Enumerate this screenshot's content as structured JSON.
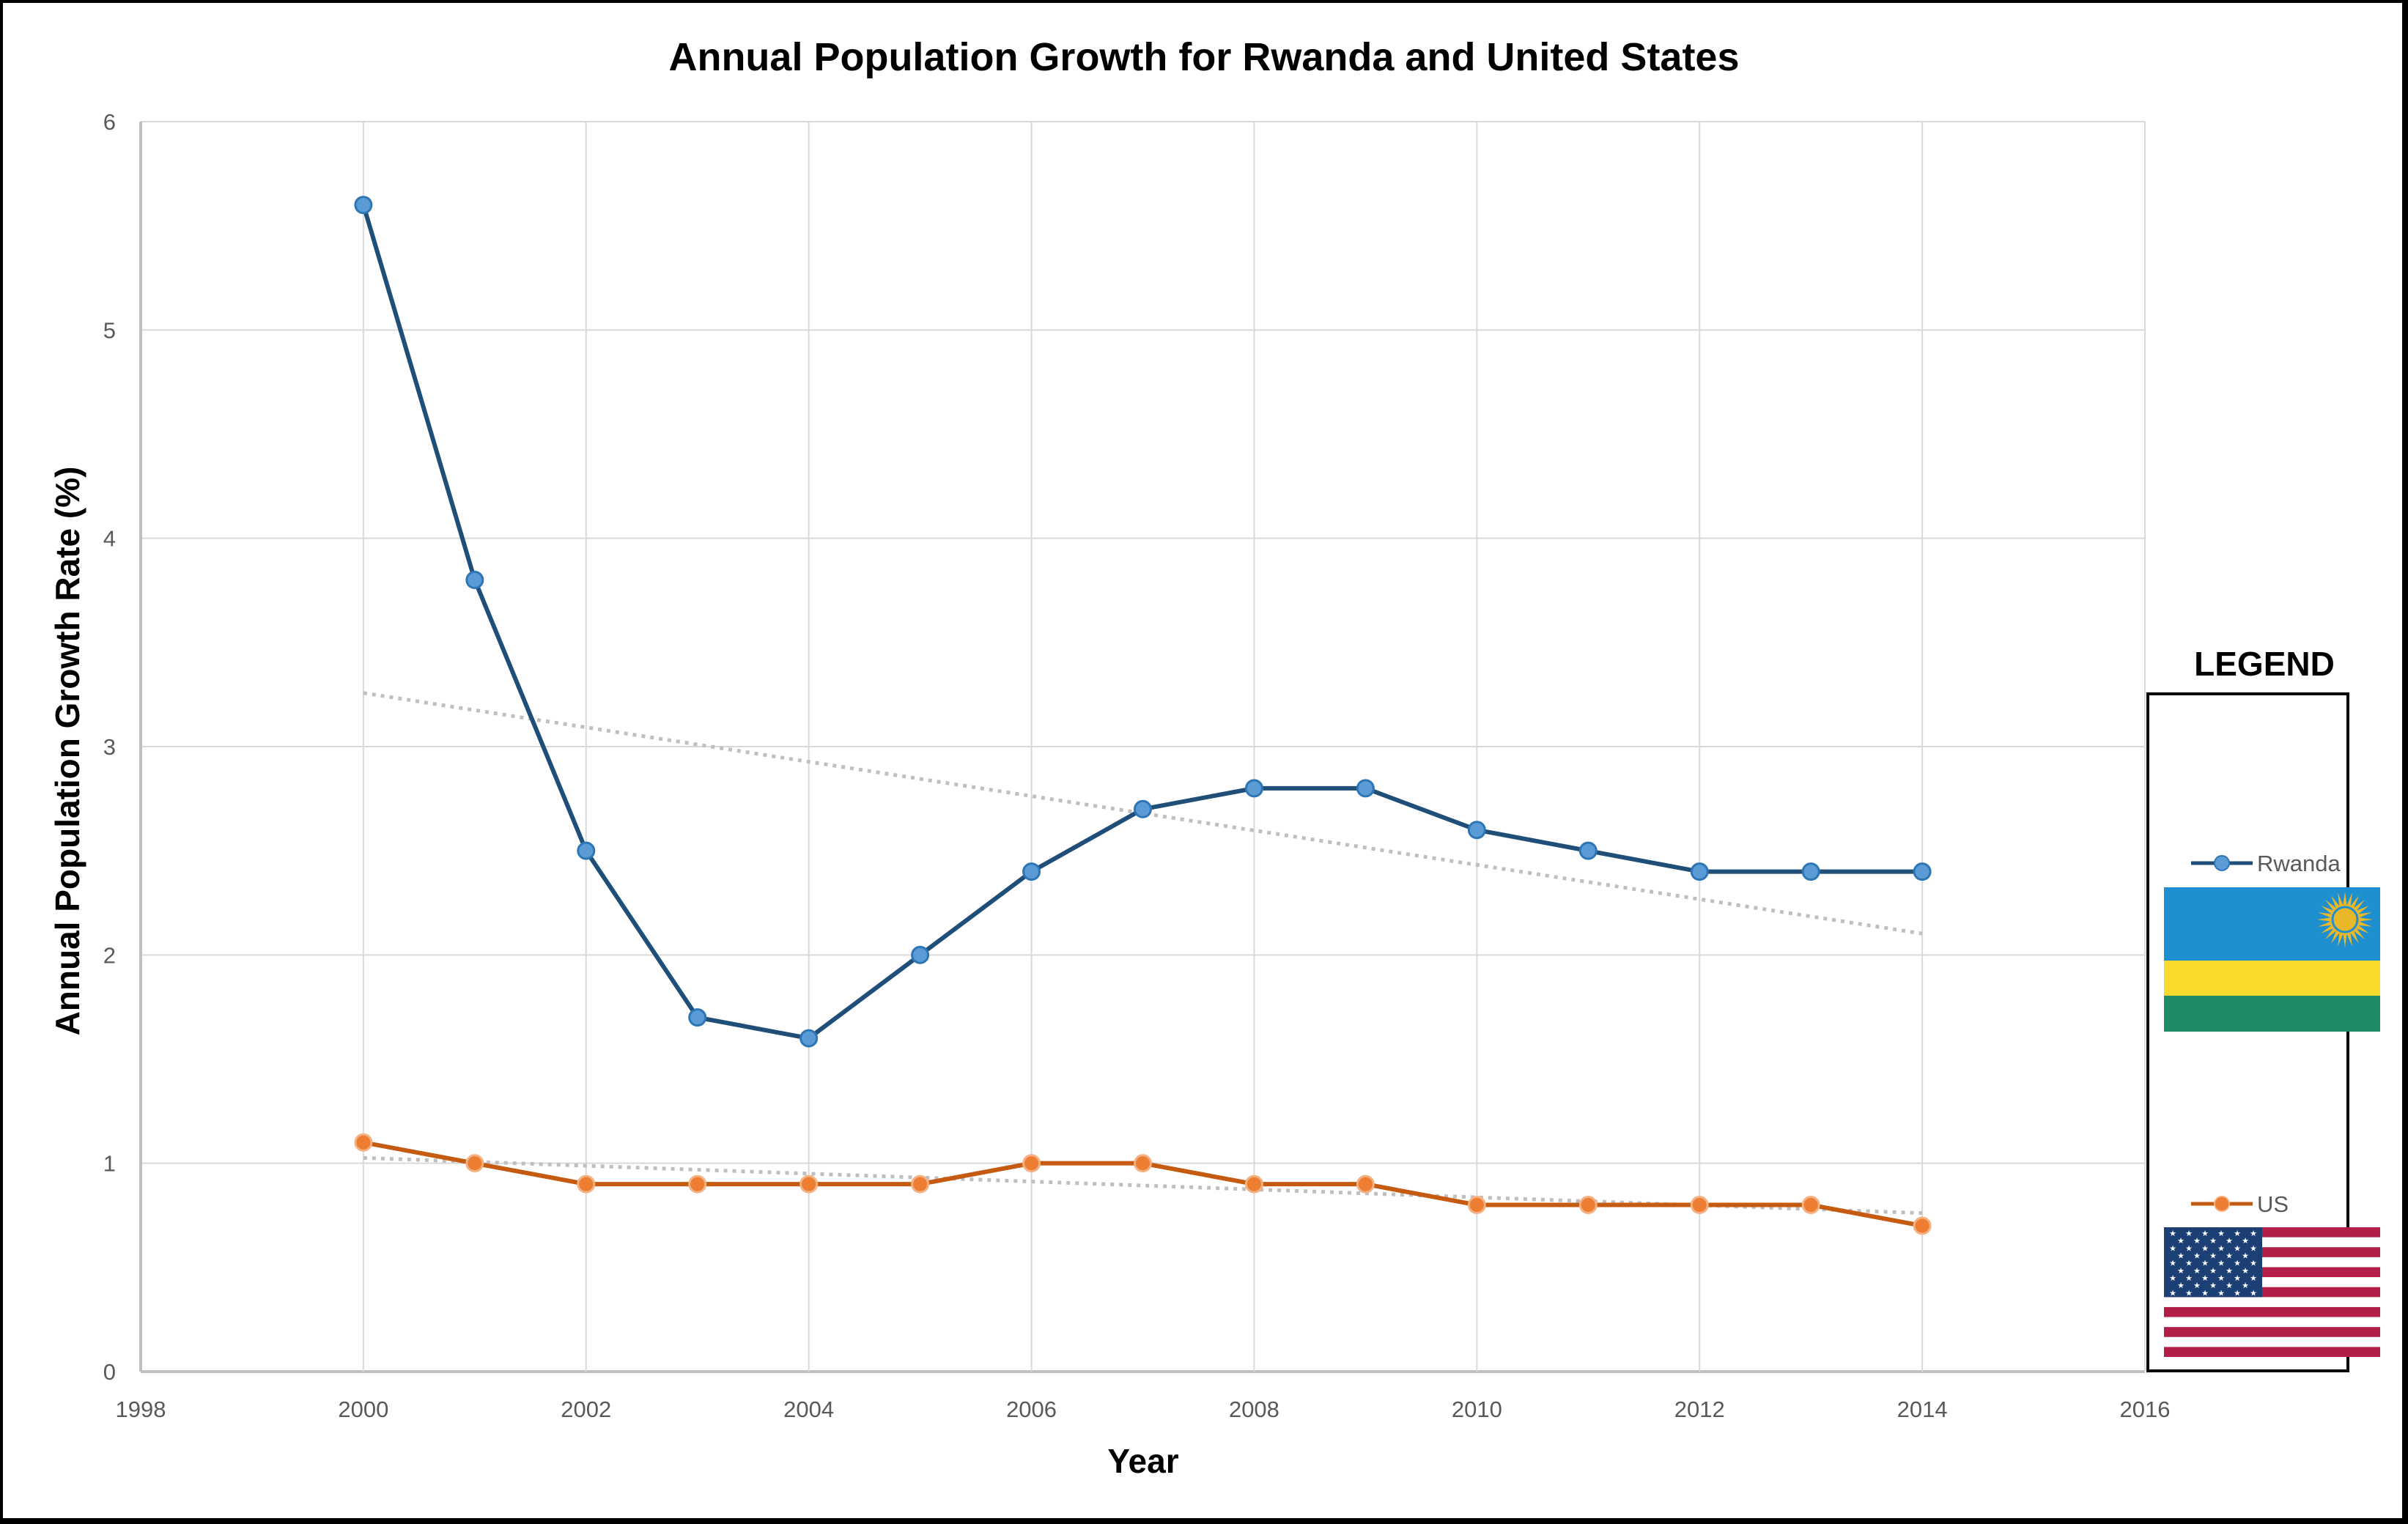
{
  "chart_data": {
    "type": "line",
    "title": "Annual Population Growth for Rwanda and United States",
    "xlabel": "Year",
    "ylabel": "Annual Population Growth Rate (%)",
    "xlim": [
      1998,
      2016
    ],
    "ylim": [
      0,
      6
    ],
    "x_ticks": [
      1998,
      2000,
      2002,
      2004,
      2006,
      2008,
      2010,
      2012,
      2014,
      2016
    ],
    "y_ticks": [
      0,
      1,
      2,
      3,
      4,
      5,
      6
    ],
    "grid": true,
    "x": [
      2000,
      2001,
      2002,
      2003,
      2004,
      2005,
      2006,
      2007,
      2008,
      2009,
      2010,
      2011,
      2012,
      2013,
      2014
    ],
    "series": [
      {
        "name": "Rwanda",
        "line_color": "#1F4E79",
        "marker_color": "#5B9BD5",
        "values": [
          5.6,
          3.8,
          2.5,
          1.7,
          1.6,
          2.0,
          2.4,
          2.7,
          2.8,
          2.8,
          2.6,
          2.5,
          2.4,
          2.4,
          2.4
        ],
        "trendline": "linear"
      },
      {
        "name": "US",
        "line_color": "#C55A11",
        "marker_color": "#ED7D31",
        "values": [
          1.1,
          1.0,
          0.9,
          0.9,
          0.9,
          0.9,
          1.0,
          1.0,
          0.9,
          0.9,
          0.8,
          0.8,
          0.8,
          0.8,
          0.7
        ],
        "trendline": "linear"
      }
    ],
    "trendline_color": "#BFBFBF",
    "legend": {
      "title": "LEGEND",
      "position": "right",
      "items": [
        {
          "label": "Rwanda",
          "flag": "rwanda-flag-icon"
        },
        {
          "label": "US",
          "flag": "us-flag-icon"
        }
      ]
    }
  },
  "flags": {
    "rwanda": {
      "blue": "#1E90D0",
      "yellow": "#F9DA2A",
      "green": "#1E8A67",
      "sun": "#E8B72A"
    },
    "us": {
      "red": "#B31E48",
      "white": "#FFFFFF",
      "blue": "#1C3F74"
    }
  }
}
